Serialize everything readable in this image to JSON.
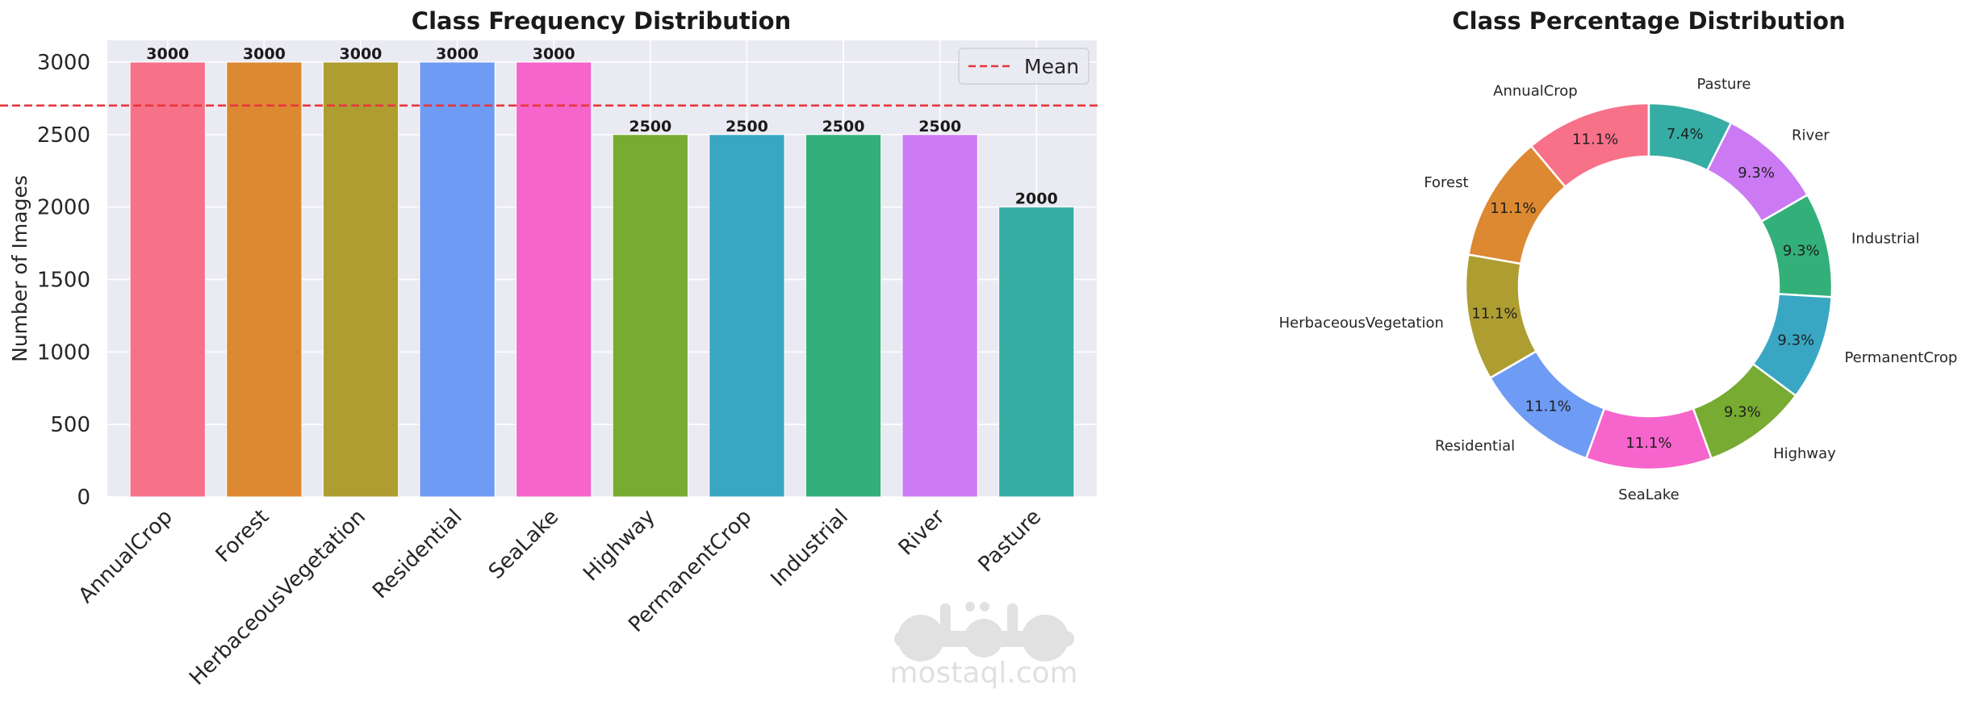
{
  "chart_data": [
    {
      "type": "bar",
      "title": "Class Frequency Distribution",
      "xlabel": "",
      "ylabel": "Number of Images",
      "categories": [
        "AnnualCrop",
        "Forest",
        "HerbaceousVegetation",
        "Residential",
        "SeaLake",
        "Highway",
        "PermanentCrop",
        "Industrial",
        "River",
        "Pasture"
      ],
      "values": [
        3000,
        3000,
        3000,
        3000,
        3000,
        2500,
        2500,
        2500,
        2500,
        2000
      ],
      "value_labels": [
        "3000",
        "3000",
        "3000",
        "3000",
        "3000",
        "2500",
        "2500",
        "2500",
        "2500",
        "2000"
      ],
      "colors": [
        "#f77189",
        "#dc8932",
        "#ae9d31",
        "#6e9bf4",
        "#f565cc",
        "#77ab31",
        "#39a7c4",
        "#33b07a",
        "#cc7af4",
        "#36ada4"
      ],
      "ylim": [
        0,
        3150
      ],
      "yticks": [
        0,
        500,
        1000,
        1500,
        2000,
        2500,
        3000
      ],
      "ytick_labels": [
        "0",
        "500",
        "1000",
        "1500",
        "2000",
        "2500",
        "3000"
      ],
      "grid": true,
      "reference_line": {
        "label": "Mean",
        "value": 2700,
        "color": "#e8363c",
        "style": "dashed"
      },
      "legend": {
        "placement": "top-right",
        "entries": [
          "Mean"
        ]
      }
    },
    {
      "type": "pie",
      "variant": "donut",
      "title": "Class Percentage Distribution",
      "categories": [
        "AnnualCrop",
        "Forest",
        "HerbaceousVegetation",
        "Residential",
        "SeaLake",
        "Highway",
        "PermanentCrop",
        "Industrial",
        "River",
        "Pasture"
      ],
      "values": [
        3000,
        3000,
        3000,
        3000,
        3000,
        2500,
        2500,
        2500,
        2500,
        2000
      ],
      "percent_labels": [
        "11.1%",
        "11.1%",
        "11.1%",
        "11.1%",
        "11.1%",
        "9.3%",
        "9.3%",
        "9.3%",
        "9.3%",
        "7.4%"
      ],
      "colors": [
        "#f77189",
        "#dc8932",
        "#ae9d31",
        "#6e9bf4",
        "#f565cc",
        "#77ab31",
        "#39a7c4",
        "#33b07a",
        "#cc7af4",
        "#36ada4"
      ],
      "start_angle_deg": 90,
      "direction": "counterclockwise"
    }
  ],
  "watermark": {
    "logo_text": "مستقل",
    "text": "mostaql.com"
  },
  "theme": {
    "plot_background": "#eaeaf2",
    "grid_color": "#ffffff",
    "text_color": "#262626"
  }
}
